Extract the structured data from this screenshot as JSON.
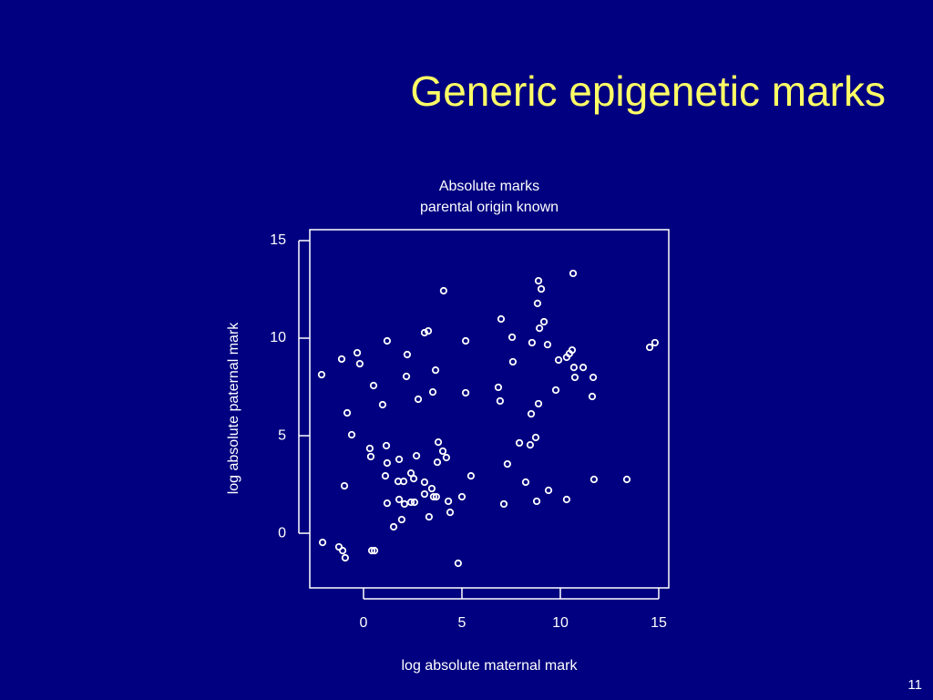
{
  "heading": "Generic epigenetic marks",
  "page_number": "11",
  "chart_data": {
    "type": "scatter",
    "title": "Absolute marks",
    "subtitle": "parental origin known",
    "x_label": "log absolute maternal mark",
    "y_label": "log absolute paternal mark",
    "color": "#ffffff",
    "grid": false,
    "xlim": [
      -2.73,
      15.51
    ],
    "ylim": [
      -2.8,
      15.56
    ],
    "xticks": [
      0,
      5,
      10,
      15
    ],
    "yticks": [
      0,
      5,
      10,
      15
    ],
    "x": [
      -2.13,
      -2.08,
      -1.25,
      -1.06,
      -0.93,
      -1.11,
      -0.97,
      -0.83,
      -0.6,
      -0.32,
      -0.19,
      0.32,
      0.37,
      0.42,
      0.56,
      0.51,
      0.97,
      1.16,
      1.2,
      1.11,
      1.2,
      1.2,
      1.53,
      1.76,
      1.81,
      1.81,
      1.94,
      2.04,
      2.08,
      2.22,
      2.18,
      2.41,
      2.41,
      2.55,
      2.59,
      2.69,
      2.78,
      3.1,
      3.1,
      3.1,
      3.29,
      3.33,
      3.47,
      3.56,
      3.52,
      3.66,
      3.7,
      3.75,
      3.8,
      4.03,
      4.21,
      4.07,
      4.31,
      4.4,
      4.81,
      5.0,
      5.19,
      5.19,
      5.46,
      6.85,
      6.94,
      6.99,
      7.13,
      7.31,
      7.55,
      7.59,
      7.92,
      8.24,
      8.47,
      8.52,
      8.56,
      8.75,
      8.8,
      8.84,
      8.89,
      8.89,
      8.94,
      9.03,
      9.17,
      9.35,
      9.4,
      9.77,
      9.91,
      10.32,
      10.32,
      10.46,
      10.6,
      10.65,
      10.69,
      10.74,
      11.16,
      11.62,
      11.67,
      11.71,
      13.38,
      14.54,
      14.81
    ],
    "values": [
      8.13,
      -0.47,
      -0.7,
      -0.89,
      -1.26,
      8.93,
      2.43,
      6.17,
      5.05,
      9.25,
      8.69,
      4.35,
      3.93,
      -0.89,
      -0.89,
      7.57,
      6.59,
      4.49,
      3.6,
      2.94,
      9.86,
      1.54,
      0.33,
      2.66,
      3.79,
      1.73,
      0.7,
      2.66,
      1.5,
      9.16,
      8.04,
      3.08,
      1.59,
      2.8,
      1.59,
      3.97,
      6.87,
      2.62,
      2.01,
      10.28,
      10.37,
      0.84,
      2.29,
      1.87,
      7.24,
      8.36,
      1.87,
      3.64,
      4.67,
      4.21,
      3.88,
      12.43,
      1.64,
      1.07,
      -1.54,
      1.87,
      9.86,
      7.2,
      2.94,
      7.48,
      6.78,
      10.98,
      1.5,
      3.55,
      10.05,
      8.79,
      4.63,
      2.62,
      4.53,
      6.12,
      9.77,
      4.91,
      1.64,
      11.78,
      6.64,
      12.94,
      10.51,
      12.52,
      10.84,
      9.67,
      2.2,
      7.34,
      8.88,
      1.73,
      9.02,
      9.21,
      9.39,
      13.32,
      8.5,
      7.99,
      8.5,
      7.01,
      7.99,
      2.76,
      2.76,
      9.53,
      9.77
    ]
  }
}
